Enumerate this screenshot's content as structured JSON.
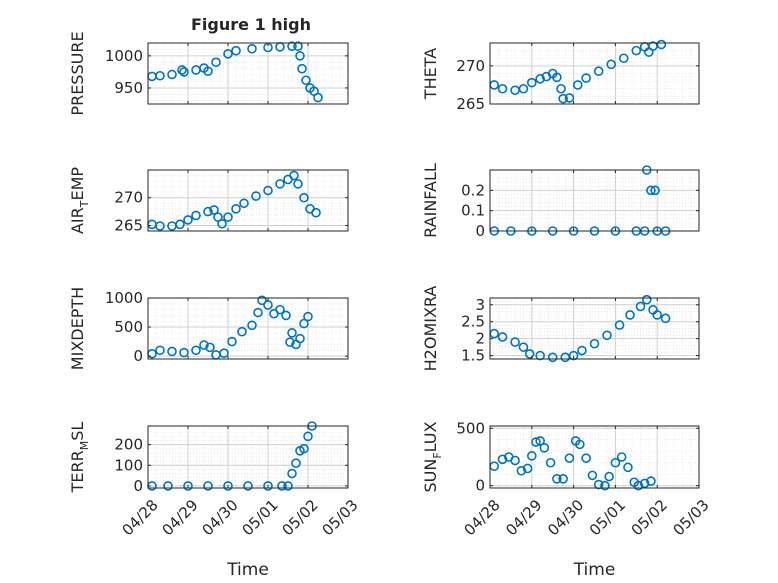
{
  "figure": {
    "title": "Figure 1 high"
  },
  "colors": {
    "marker": "#0072BD",
    "axis": "#262626",
    "grid": "#d0d0d0",
    "minor_grid": "#e2e2e2"
  },
  "chart_data": [
    {
      "type": "scatter",
      "name": "pressure-panel",
      "ylabel": "PRESSURE",
      "ylabel_sub": null,
      "xlim": [
        "04/28",
        "05/03"
      ],
      "ylim": [
        925,
        1020
      ],
      "yticks": [
        950,
        1000
      ],
      "xticks": [
        "04/28",
        "04/29",
        "04/30",
        "05/01",
        "05/02",
        "05/03"
      ],
      "show_xticklabels": false,
      "xlabel": "",
      "points": [
        [
          0.1,
          968
        ],
        [
          0.3,
          969
        ],
        [
          0.6,
          971
        ],
        [
          0.85,
          978
        ],
        [
          0.9,
          975
        ],
        [
          1.2,
          978
        ],
        [
          1.4,
          981
        ],
        [
          1.5,
          976
        ],
        [
          1.7,
          990
        ],
        [
          2.0,
          1003
        ],
        [
          2.2,
          1008
        ],
        [
          2.6,
          1011
        ],
        [
          3.0,
          1013
        ],
        [
          3.3,
          1014
        ],
        [
          3.6,
          1015
        ],
        [
          3.75,
          1015
        ],
        [
          3.8,
          1000
        ],
        [
          3.85,
          980
        ],
        [
          3.95,
          962
        ],
        [
          4.05,
          950
        ],
        [
          4.15,
          945
        ],
        [
          4.25,
          935
        ]
      ]
    },
    {
      "type": "scatter",
      "name": "theta-panel",
      "ylabel": "THETA",
      "ylabel_sub": null,
      "xlim": [
        "04/28",
        "05/03"
      ],
      "ylim": [
        265,
        273
      ],
      "yticks": [
        265,
        270
      ],
      "xticks": [
        "04/28",
        "04/29",
        "04/30",
        "05/01",
        "05/02",
        "05/03"
      ],
      "show_xticklabels": false,
      "xlabel": "",
      "points": [
        [
          0.1,
          267.5
        ],
        [
          0.3,
          267.0
        ],
        [
          0.6,
          266.8
        ],
        [
          0.8,
          267.0
        ],
        [
          1.0,
          267.8
        ],
        [
          1.2,
          268.3
        ],
        [
          1.35,
          268.6
        ],
        [
          1.5,
          269.0
        ],
        [
          1.6,
          268.5
        ],
        [
          1.7,
          267.0
        ],
        [
          1.75,
          265.7
        ],
        [
          1.9,
          265.8
        ],
        [
          2.1,
          267.5
        ],
        [
          2.3,
          268.4
        ],
        [
          2.6,
          269.3
        ],
        [
          2.9,
          270.2
        ],
        [
          3.2,
          271.0
        ],
        [
          3.5,
          272.0
        ],
        [
          3.7,
          272.5
        ],
        [
          3.8,
          271.8
        ],
        [
          3.9,
          272.6
        ],
        [
          4.1,
          272.8
        ]
      ]
    },
    {
      "type": "scatter",
      "name": "air-temp-panel",
      "ylabel": "AIR",
      "ylabel_sub": "T",
      "ylabel_suffix": "EMP",
      "xlim": [
        "04/28",
        "05/03"
      ],
      "ylim": [
        264,
        275
      ],
      "yticks": [
        265,
        270
      ],
      "xticks": [
        "04/28",
        "04/29",
        "04/30",
        "05/01",
        "05/02",
        "05/03"
      ],
      "show_xticklabels": false,
      "xlabel": "",
      "points": [
        [
          0.1,
          265.2
        ],
        [
          0.3,
          264.9
        ],
        [
          0.6,
          264.9
        ],
        [
          0.8,
          265.2
        ],
        [
          1.0,
          266.0
        ],
        [
          1.2,
          266.8
        ],
        [
          1.5,
          267.5
        ],
        [
          1.65,
          267.8
        ],
        [
          1.75,
          266.5
        ],
        [
          1.85,
          265.3
        ],
        [
          2.0,
          266.5
        ],
        [
          2.2,
          268.0
        ],
        [
          2.4,
          269.0
        ],
        [
          2.7,
          270.3
        ],
        [
          3.0,
          271.3
        ],
        [
          3.3,
          272.5
        ],
        [
          3.5,
          273.3
        ],
        [
          3.65,
          274.0
        ],
        [
          3.75,
          272.5
        ],
        [
          3.9,
          270.0
        ],
        [
          4.05,
          268.0
        ],
        [
          4.2,
          267.3
        ]
      ]
    },
    {
      "type": "scatter",
      "name": "rainfall-panel",
      "ylabel": "RAINFALL",
      "ylabel_sub": null,
      "xlim": [
        "04/28",
        "05/03"
      ],
      "ylim": [
        0,
        0.3
      ],
      "yticks": [
        0,
        0.1,
        0.2
      ],
      "xticks": [
        "04/28",
        "04/29",
        "04/30",
        "05/01",
        "05/02",
        "05/03"
      ],
      "show_xticklabels": false,
      "xlabel": "",
      "points": [
        [
          0.1,
          0
        ],
        [
          0.5,
          0
        ],
        [
          1.0,
          0
        ],
        [
          1.5,
          0
        ],
        [
          2.0,
          0
        ],
        [
          2.5,
          0
        ],
        [
          3.0,
          0
        ],
        [
          3.5,
          0
        ],
        [
          3.7,
          0
        ],
        [
          3.75,
          0.3
        ],
        [
          3.85,
          0.2
        ],
        [
          3.95,
          0.2
        ],
        [
          4.0,
          0
        ],
        [
          4.2,
          0
        ]
      ]
    },
    {
      "type": "scatter",
      "name": "mixdepth-panel",
      "ylabel": "MIXDEPTH",
      "ylabel_sub": null,
      "xlim": [
        "04/28",
        "05/03"
      ],
      "ylim": [
        -50,
        1000
      ],
      "yticks": [
        0,
        500,
        1000
      ],
      "xticks": [
        "04/28",
        "04/29",
        "04/30",
        "05/01",
        "05/02",
        "05/03"
      ],
      "show_xticklabels": false,
      "xlabel": "",
      "points": [
        [
          0.1,
          40
        ],
        [
          0.3,
          100
        ],
        [
          0.6,
          80
        ],
        [
          0.9,
          60
        ],
        [
          1.2,
          100
        ],
        [
          1.4,
          190
        ],
        [
          1.55,
          150
        ],
        [
          1.7,
          20
        ],
        [
          1.9,
          50
        ],
        [
          2.1,
          250
        ],
        [
          2.35,
          420
        ],
        [
          2.6,
          530
        ],
        [
          2.75,
          750
        ],
        [
          2.85,
          960
        ],
        [
          3.0,
          880
        ],
        [
          3.15,
          730
        ],
        [
          3.3,
          800
        ],
        [
          3.45,
          700
        ],
        [
          3.55,
          240
        ],
        [
          3.6,
          400
        ],
        [
          3.7,
          200
        ],
        [
          3.8,
          300
        ],
        [
          3.9,
          560
        ],
        [
          4.0,
          680
        ]
      ]
    },
    {
      "type": "scatter",
      "name": "h2omixra-panel",
      "ylabel": "H2OMIXRA",
      "ylabel_sub": null,
      "xlim": [
        "04/28",
        "05/03"
      ],
      "ylim": [
        1.4,
        3.2
      ],
      "yticks": [
        1.5,
        2,
        2.5,
        3
      ],
      "xticks": [
        "04/28",
        "04/29",
        "04/30",
        "05/01",
        "05/02",
        "05/03"
      ],
      "show_xticklabels": false,
      "xlabel": "",
      "points": [
        [
          0.1,
          2.15
        ],
        [
          0.3,
          2.05
        ],
        [
          0.6,
          1.9
        ],
        [
          0.8,
          1.75
        ],
        [
          0.95,
          1.55
        ],
        [
          1.2,
          1.5
        ],
        [
          1.5,
          1.45
        ],
        [
          1.8,
          1.45
        ],
        [
          2.0,
          1.5
        ],
        [
          2.2,
          1.65
        ],
        [
          2.5,
          1.85
        ],
        [
          2.8,
          2.1
        ],
        [
          3.1,
          2.4
        ],
        [
          3.35,
          2.7
        ],
        [
          3.6,
          2.95
        ],
        [
          3.75,
          3.15
        ],
        [
          3.9,
          2.85
        ],
        [
          4.0,
          2.7
        ],
        [
          4.2,
          2.6
        ]
      ]
    },
    {
      "type": "scatter",
      "name": "terr-msl-panel",
      "ylabel": "TERR",
      "ylabel_sub": "M",
      "ylabel_suffix": "SL",
      "xlim": [
        "04/28",
        "05/03"
      ],
      "ylim": [
        -10,
        290
      ],
      "yticks": [
        0,
        100,
        200
      ],
      "xticks": [
        "04/28",
        "04/29",
        "04/30",
        "05/01",
        "05/02",
        "05/03"
      ],
      "show_xticklabels": true,
      "xlabel": "Time",
      "points": [
        [
          0.1,
          0
        ],
        [
          0.5,
          0
        ],
        [
          1.0,
          0
        ],
        [
          1.5,
          0
        ],
        [
          2.0,
          0
        ],
        [
          2.5,
          0
        ],
        [
          3.0,
          0
        ],
        [
          3.35,
          0
        ],
        [
          3.5,
          0
        ],
        [
          3.6,
          60
        ],
        [
          3.7,
          110
        ],
        [
          3.8,
          170
        ],
        [
          3.9,
          180
        ],
        [
          4.0,
          240
        ],
        [
          4.1,
          290
        ]
      ]
    },
    {
      "type": "scatter",
      "name": "sun-flux-panel",
      "ylabel": "SUN",
      "ylabel_sub": "F",
      "ylabel_suffix": "LUX",
      "xlim": [
        "04/28",
        "05/03"
      ],
      "ylim": [
        -20,
        520
      ],
      "yticks": [
        0,
        500
      ],
      "xticks": [
        "04/28",
        "04/29",
        "04/30",
        "05/01",
        "05/02",
        "05/03"
      ],
      "show_xticklabels": true,
      "xlabel": "Time",
      "points": [
        [
          0.1,
          170
        ],
        [
          0.3,
          230
        ],
        [
          0.45,
          250
        ],
        [
          0.6,
          220
        ],
        [
          0.75,
          130
        ],
        [
          0.9,
          150
        ],
        [
          1.0,
          260
        ],
        [
          1.1,
          380
        ],
        [
          1.2,
          390
        ],
        [
          1.3,
          330
        ],
        [
          1.45,
          200
        ],
        [
          1.6,
          60
        ],
        [
          1.75,
          60
        ],
        [
          1.9,
          240
        ],
        [
          2.05,
          390
        ],
        [
          2.15,
          360
        ],
        [
          2.3,
          240
        ],
        [
          2.45,
          90
        ],
        [
          2.6,
          10
        ],
        [
          2.75,
          0
        ],
        [
          2.85,
          80
        ],
        [
          3.0,
          200
        ],
        [
          3.15,
          250
        ],
        [
          3.3,
          160
        ],
        [
          3.45,
          30
        ],
        [
          3.55,
          0
        ],
        [
          3.7,
          20
        ],
        [
          3.85,
          40
        ]
      ]
    }
  ]
}
